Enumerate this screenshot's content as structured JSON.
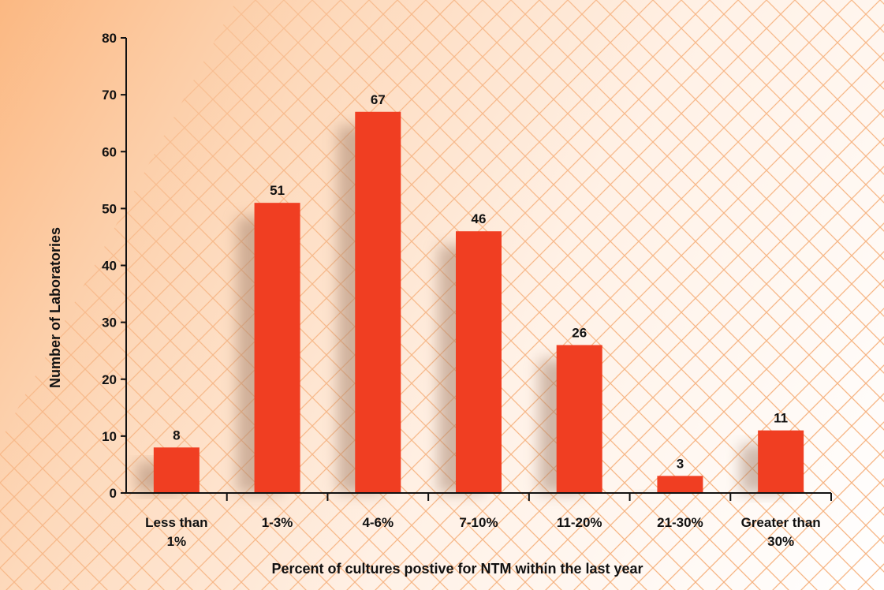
{
  "chart_data": {
    "type": "bar",
    "categories": [
      [
        "Less than",
        "1%"
      ],
      [
        "1-3%"
      ],
      [
        "4-6%"
      ],
      [
        "7-10%"
      ],
      [
        "11-20%"
      ],
      [
        "21-30%"
      ],
      [
        "Greater than",
        "30%"
      ]
    ],
    "values": [
      8,
      51,
      67,
      46,
      26,
      3,
      11
    ],
    "xlabel": "Percent of cultures postive for NTM within the last year",
    "ylabel": "Number of Laboratories",
    "ylim": [
      0,
      80
    ],
    "yticks": [
      0,
      10,
      20,
      30,
      40,
      50,
      60,
      70,
      80
    ],
    "grid": false,
    "legend": "none",
    "colors": {
      "bar": "#f03e22",
      "axis": "#111111",
      "pattern": "#f6b483"
    }
  }
}
